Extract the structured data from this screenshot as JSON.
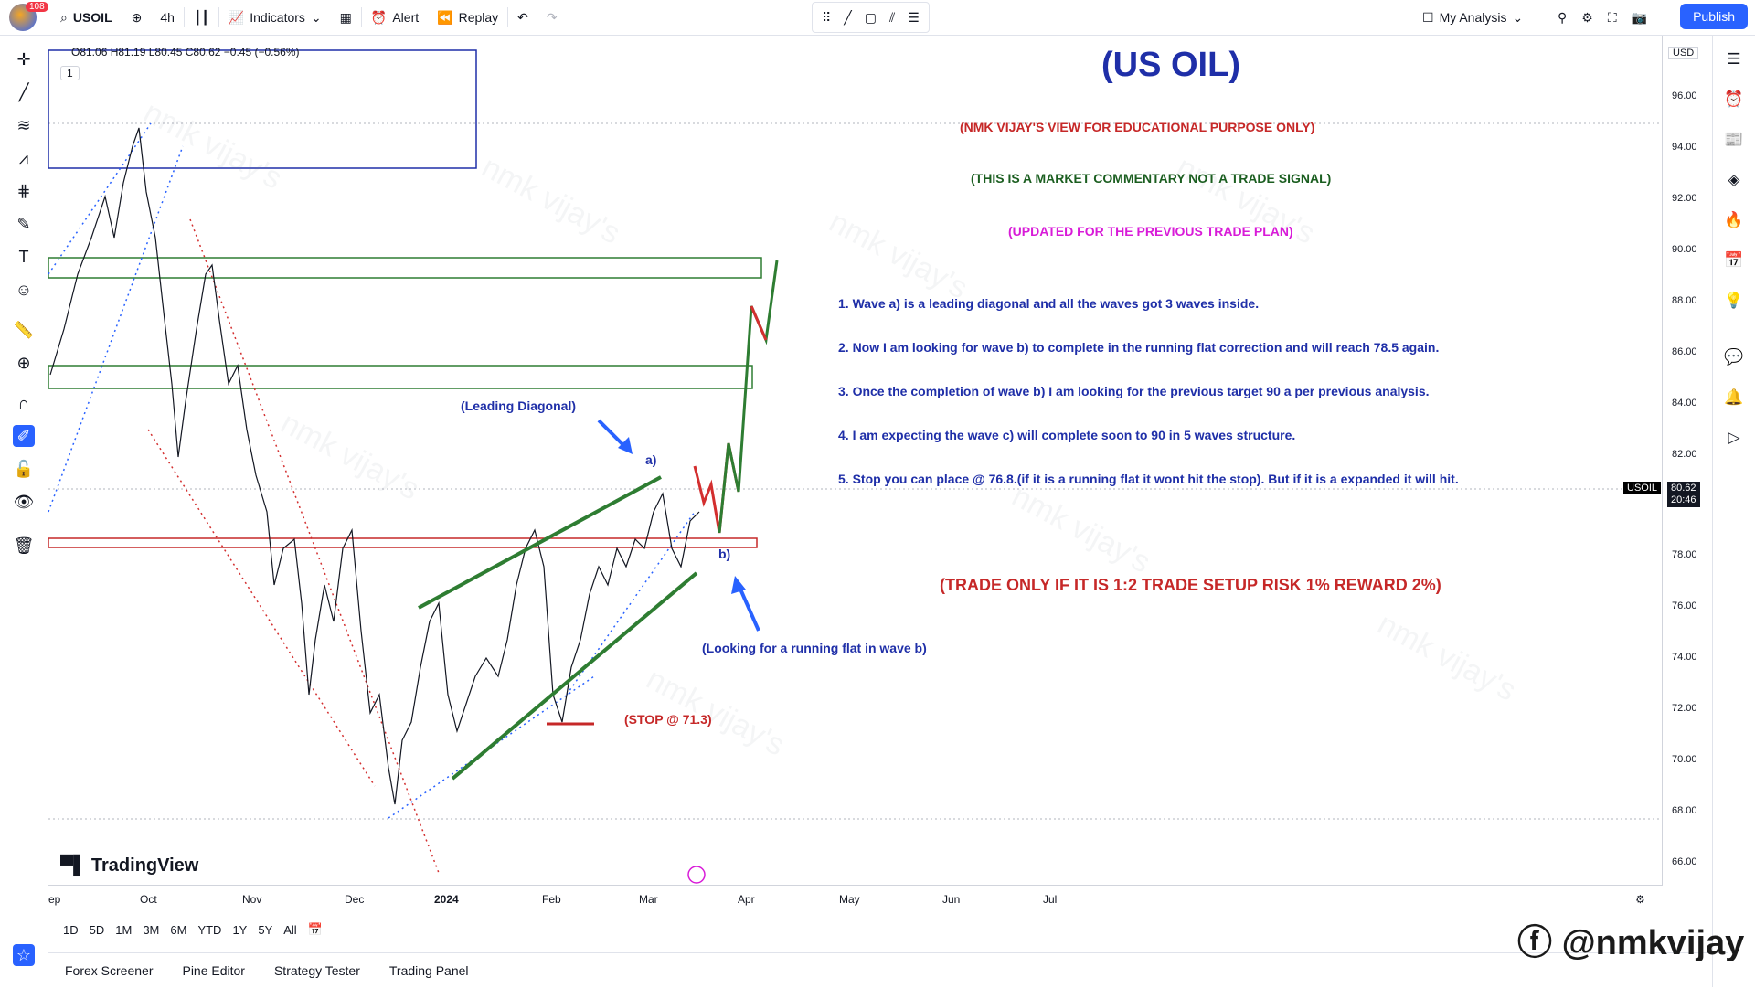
{
  "toolbar": {
    "notif_count": "108",
    "symbol": "USOIL",
    "interval": "4h",
    "indicators": "Indicators",
    "alert": "Alert",
    "replay": "Replay",
    "layout": "My Analysis",
    "publish": "Publish"
  },
  "legend": {
    "ohlc": "O81.06 H81.19 L80.45 C80.62 −0.45 (−0.56%)",
    "collapse": "1"
  },
  "price_scale": {
    "currency": "USD",
    "ticks": [
      "96.00",
      "94.00",
      "92.00",
      "90.00",
      "88.00",
      "86.00",
      "84.00",
      "82.00",
      "78.00",
      "76.00",
      "74.00",
      "72.00",
      "70.00",
      "68.00",
      "66.00"
    ],
    "last_symbol": "USOIL",
    "last_price": "80.62",
    "countdown": "20:46"
  },
  "time_axis": [
    "ep",
    "Oct",
    "Nov",
    "Dec",
    "2024",
    "Feb",
    "Mar",
    "Apr",
    "May",
    "Jun",
    "Jul"
  ],
  "ranges": [
    "1D",
    "5D",
    "1M",
    "3M",
    "6M",
    "YTD",
    "1Y",
    "5Y",
    "All"
  ],
  "bottom_tabs": [
    "Forex Screener",
    "Pine Editor",
    "Strategy Tester",
    "Trading Panel"
  ],
  "annotations": {
    "title": "(US OIL)",
    "disclaimer": "(NMK VIJAY'S VIEW FOR EDUCATIONAL PURPOSE ONLY)",
    "commentary": "(THIS IS A MARKET COMMENTARY NOT A TRADE SIGNAL)",
    "updated": "(UPDATED FOR THE PREVIOUS TRADE PLAN)",
    "points": [
      "1. Wave a) is a leading diagonal and all the waves got 3 waves inside.",
      "2. Now I am looking for wave b) to complete in the running flat correction and will reach 78.5 again.",
      "3. Once the completion of wave b) I am looking for the previous target 90 a per previous analysis.",
      "4. I am expecting the wave c) will complete soon to 90 in 5 waves structure.",
      "5. Stop you can place @ 76.8.(if it is a running flat it wont hit the stop). But if it is a expanded it will hit."
    ],
    "trade": "(TRADE ONLY IF IT IS 1:2 TRADE SETUP RISK 1% REWARD 2%)",
    "leading": "(Leading Diagonal)",
    "wave_a": "a)",
    "wave_b": "b)",
    "running": "(Looking for a running flat in wave b)",
    "stop": "(STOP @ 71.3)",
    "watermark": "nmk vijay's"
  },
  "brand": "TradingView",
  "credit": "@nmkvijay",
  "colors": {
    "blue_text": "#1f2fa8",
    "red_text": "#c62828",
    "green_text": "#1b5e20",
    "magenta_text": "#d81bd8",
    "trend_green": "#2e7d32",
    "accent": "#2962ff"
  },
  "icons": [
    "search-icon",
    "plus-icon",
    "bars-icon",
    "indicators-icon",
    "grid-icon",
    "alert-icon",
    "replay-icon",
    "undo-icon",
    "redo-icon"
  ]
}
